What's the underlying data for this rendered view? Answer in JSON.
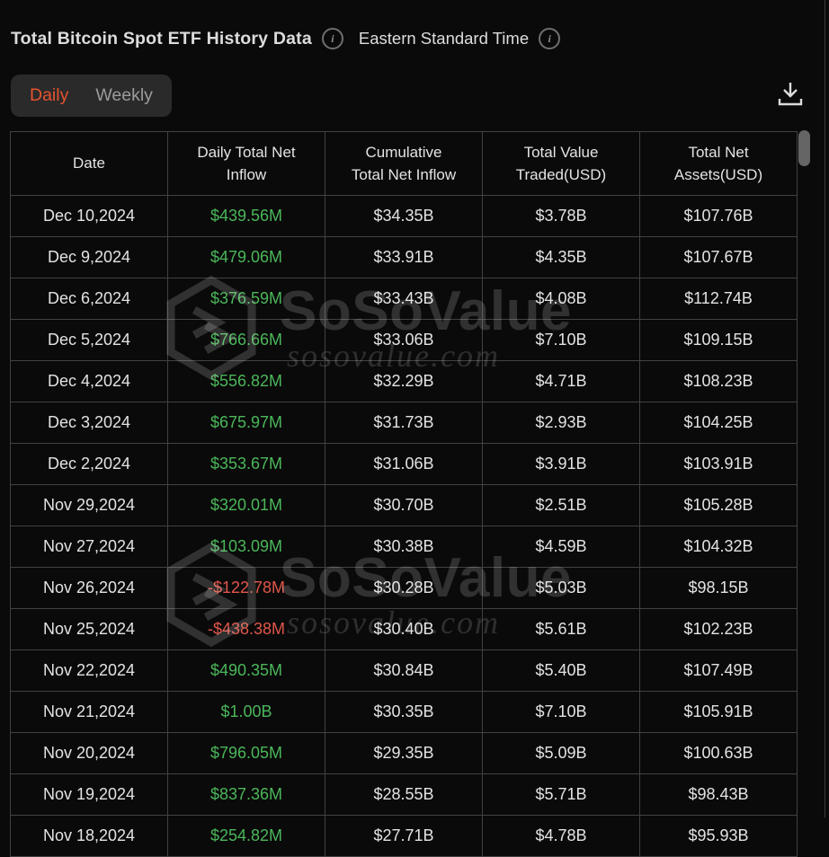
{
  "header": {
    "title": "Total Bitcoin Spot ETF History Data",
    "timezone": "Eastern Standard Time"
  },
  "tabs": [
    {
      "id": "daily",
      "label": "Daily",
      "active": true
    },
    {
      "id": "weekly",
      "label": "Weekly",
      "active": false
    }
  ],
  "toolbar": {
    "download_icon": "download-tray-arrow"
  },
  "watermark": {
    "brand": "SoSoValue",
    "domain": "sosovalue.com"
  },
  "colors": {
    "accent_orange": "#e5532e",
    "positive_green": "#4bb75a",
    "negative_red": "#e0564a",
    "background": "#0a0a0a",
    "panel": "#2a2a2a",
    "border": "#424242"
  },
  "table": {
    "columns": [
      {
        "id": "date",
        "lines": [
          "Date"
        ]
      },
      {
        "id": "daily-net-inflow",
        "lines": [
          "Daily Total Net",
          "Inflow"
        ]
      },
      {
        "id": "cumulative-net-inflow",
        "lines": [
          "Cumulative",
          "Total Net Inflow"
        ]
      },
      {
        "id": "value-traded",
        "lines": [
          "Total Value",
          "Traded(USD)"
        ]
      },
      {
        "id": "net-assets",
        "lines": [
          "Total Net",
          "Assets(USD)"
        ]
      }
    ],
    "rows": [
      {
        "date": "Dec 10,2024",
        "daily_net_inflow": "$439.56M",
        "trend": "up",
        "cumulative_net_inflow": "$34.35B",
        "value_traded": "$3.78B",
        "net_assets": "$107.76B"
      },
      {
        "date": "Dec 9,2024",
        "daily_net_inflow": "$479.06M",
        "trend": "up",
        "cumulative_net_inflow": "$33.91B",
        "value_traded": "$4.35B",
        "net_assets": "$107.67B"
      },
      {
        "date": "Dec 6,2024",
        "daily_net_inflow": "$376.59M",
        "trend": "up",
        "cumulative_net_inflow": "$33.43B",
        "value_traded": "$4.08B",
        "net_assets": "$112.74B"
      },
      {
        "date": "Dec 5,2024",
        "daily_net_inflow": "$766.66M",
        "trend": "up",
        "cumulative_net_inflow": "$33.06B",
        "value_traded": "$7.10B",
        "net_assets": "$109.15B"
      },
      {
        "date": "Dec 4,2024",
        "daily_net_inflow": "$556.82M",
        "trend": "up",
        "cumulative_net_inflow": "$32.29B",
        "value_traded": "$4.71B",
        "net_assets": "$108.23B"
      },
      {
        "date": "Dec 3,2024",
        "daily_net_inflow": "$675.97M",
        "trend": "up",
        "cumulative_net_inflow": "$31.73B",
        "value_traded": "$2.93B",
        "net_assets": "$104.25B"
      },
      {
        "date": "Dec 2,2024",
        "daily_net_inflow": "$353.67M",
        "trend": "up",
        "cumulative_net_inflow": "$31.06B",
        "value_traded": "$3.91B",
        "net_assets": "$103.91B"
      },
      {
        "date": "Nov 29,2024",
        "daily_net_inflow": "$320.01M",
        "trend": "up",
        "cumulative_net_inflow": "$30.70B",
        "value_traded": "$2.51B",
        "net_assets": "$105.28B"
      },
      {
        "date": "Nov 27,2024",
        "daily_net_inflow": "$103.09M",
        "trend": "up",
        "cumulative_net_inflow": "$30.38B",
        "value_traded": "$4.59B",
        "net_assets": "$104.32B"
      },
      {
        "date": "Nov 26,2024",
        "daily_net_inflow": "-$122.78M",
        "trend": "down",
        "cumulative_net_inflow": "$30.28B",
        "value_traded": "$5.03B",
        "net_assets": "$98.15B"
      },
      {
        "date": "Nov 25,2024",
        "daily_net_inflow": "-$438.38M",
        "trend": "down",
        "cumulative_net_inflow": "$30.40B",
        "value_traded": "$5.61B",
        "net_assets": "$102.23B"
      },
      {
        "date": "Nov 22,2024",
        "daily_net_inflow": "$490.35M",
        "trend": "up",
        "cumulative_net_inflow": "$30.84B",
        "value_traded": "$5.40B",
        "net_assets": "$107.49B"
      },
      {
        "date": "Nov 21,2024",
        "daily_net_inflow": "$1.00B",
        "trend": "up",
        "cumulative_net_inflow": "$30.35B",
        "value_traded": "$7.10B",
        "net_assets": "$105.91B"
      },
      {
        "date": "Nov 20,2024",
        "daily_net_inflow": "$796.05M",
        "trend": "up",
        "cumulative_net_inflow": "$29.35B",
        "value_traded": "$5.09B",
        "net_assets": "$100.63B"
      },
      {
        "date": "Nov 19,2024",
        "daily_net_inflow": "$837.36M",
        "trend": "up",
        "cumulative_net_inflow": "$28.55B",
        "value_traded": "$5.71B",
        "net_assets": "$98.43B"
      },
      {
        "date": "Nov 18,2024",
        "daily_net_inflow": "$254.82M",
        "trend": "up",
        "cumulative_net_inflow": "$27.71B",
        "value_traded": "$4.78B",
        "net_assets": "$95.93B"
      }
    ]
  }
}
